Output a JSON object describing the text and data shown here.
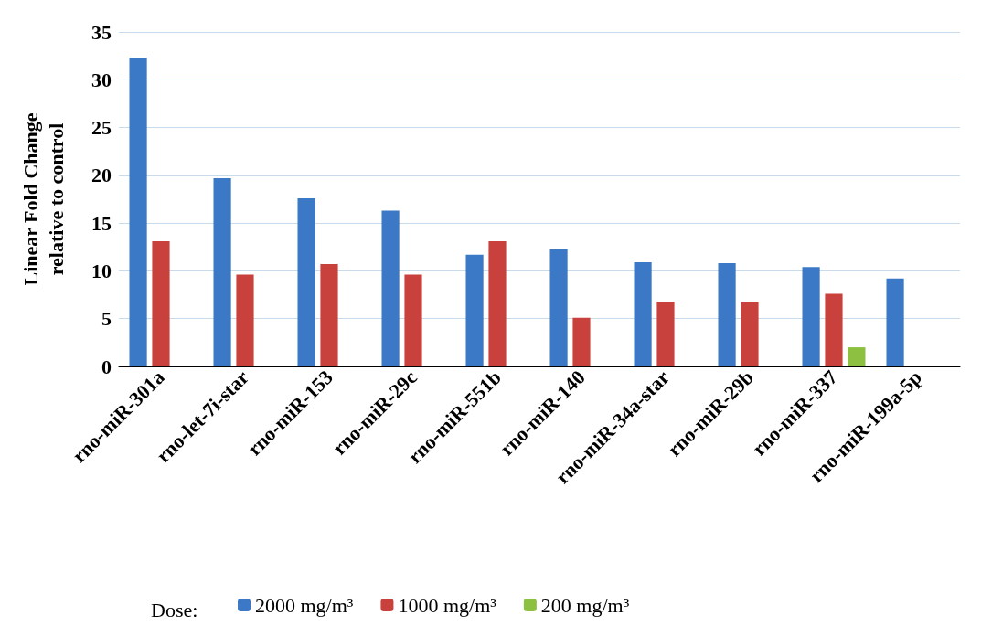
{
  "chart_data": {
    "type": "bar",
    "ylabel": "Linear Fold Change\nrelative to control",
    "legend_title": "Dose:",
    "categories": [
      "rno-miR-301a",
      "rno-let-7i-star",
      "rno-miR-153",
      "rno-miR-29c",
      "rno-miR-551b",
      "rno-miR-140",
      "rno-miR-34a-star",
      "rno-miR-29b",
      "rno-miR-337",
      "rno-miR-199a-5p"
    ],
    "series": [
      {
        "name": "2000 mg/m³",
        "color": "#3b78c6",
        "values": [
          32.3,
          19.7,
          17.6,
          16.3,
          11.7,
          12.3,
          10.9,
          10.8,
          10.4,
          9.2
        ]
      },
      {
        "name": "1000 mg/m³",
        "color": "#c9413d",
        "values": [
          13.1,
          9.6,
          10.7,
          9.6,
          13.1,
          5.1,
          6.8,
          6.7,
          7.6,
          null
        ]
      },
      {
        "name": "200 mg/m³",
        "color": "#8dbf41",
        "values": [
          null,
          null,
          null,
          null,
          null,
          null,
          null,
          null,
          2.0,
          null
        ]
      }
    ],
    "ylim": [
      0,
      35
    ],
    "yticks": [
      0,
      5,
      10,
      15,
      20,
      25,
      30,
      35
    ],
    "grid": "y",
    "legend": "bottom"
  }
}
